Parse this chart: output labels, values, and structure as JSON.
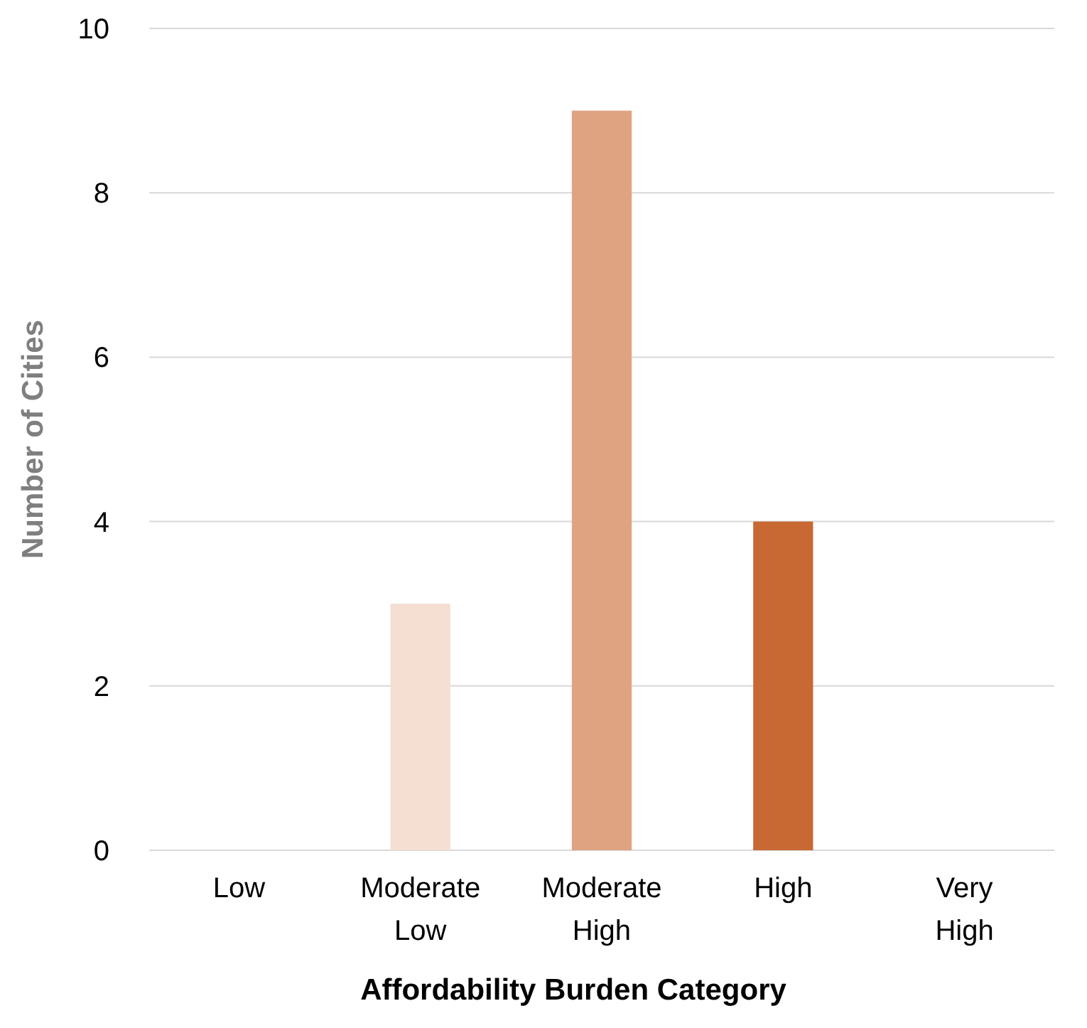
{
  "chart_data": {
    "type": "bar",
    "xlabel": "Affordability Burden Category",
    "ylabel": "Number of Cities",
    "categories": [
      "Low",
      "Moderate Low",
      "Moderate High",
      "High",
      "Very High"
    ],
    "values": [
      0,
      3,
      9,
      4,
      0
    ],
    "colors": [
      "#faeee6",
      "#f4dfd2",
      "#e0a382",
      "#c86832",
      "#8f4a22"
    ],
    "ylim": [
      0,
      10
    ],
    "yticks": [
      0,
      2,
      4,
      6,
      8,
      10
    ],
    "grid": "y"
  }
}
